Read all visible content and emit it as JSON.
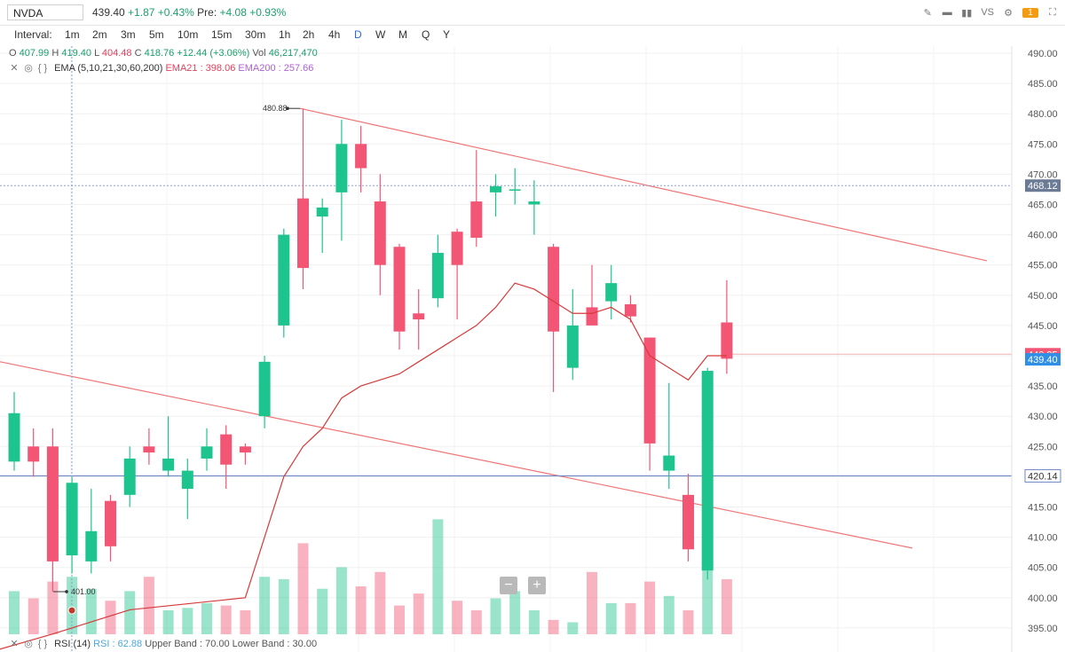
{
  "toolbar": {
    "symbol": "NVDA",
    "price": "439.40",
    "change": "+1.87",
    "change_pct": "+0.43%",
    "pre_label": "Pre:",
    "pre_change": "+4.08",
    "pre_change_pct": "+0.93%",
    "badge": "1",
    "vs_label": "VS"
  },
  "intervals": {
    "label": "Interval:",
    "items": [
      "1m",
      "2m",
      "3m",
      "5m",
      "10m",
      "15m",
      "30m",
      "1h",
      "2h",
      "4h",
      "D",
      "W",
      "M",
      "Q",
      "Y"
    ],
    "active": "D"
  },
  "ohlc": {
    "o_label": "O",
    "o": "407.99",
    "h_label": "H",
    "h": "419.40",
    "l_label": "L",
    "l": "404.48",
    "c_label": "C",
    "c": "418.76",
    "change": "+12.44 (+3.06%)",
    "vol_label": "Vol",
    "vol": "46,217,470"
  },
  "ema": {
    "label": "EMA (5,10,21,30,60,200)",
    "ema21": "EMA21 : 398.06",
    "ema200": "EMA200 : 257.66"
  },
  "rsi": {
    "label": "RSI (14)",
    "value": "RSI : 62.88",
    "upper": "Upper Band : 70.00",
    "lower": "Lower Band : 30.00"
  },
  "colors": {
    "up": "#1ec48e",
    "down": "#f25674",
    "ema": "#d63a3a",
    "trendline": "#f07575",
    "hline": "#6d88c4",
    "accent": "#2f6ad9"
  },
  "chart_data": {
    "type": "candlestick",
    "ylim": [
      392,
      492
    ],
    "y_ticks": [
      "490.00",
      "485.00",
      "480.00",
      "475.00",
      "470.00",
      "465.00",
      "460.00",
      "455.00",
      "450.00",
      "445.00",
      "440.00",
      "435.00",
      "430.00",
      "425.00",
      "420.00",
      "415.00",
      "410.00",
      "405.00",
      "400.00",
      "395.00"
    ],
    "candles": [
      {
        "o": 422.5,
        "h": 434,
        "l": 421,
        "c": 430.5
      },
      {
        "o": 425,
        "h": 428,
        "l": 420,
        "c": 422.5
      },
      {
        "o": 425,
        "h": 428,
        "l": 401,
        "c": 406
      },
      {
        "o": 407,
        "h": 420,
        "l": 404,
        "c": 419
      },
      {
        "o": 406,
        "h": 418,
        "l": 404,
        "c": 411
      },
      {
        "o": 416,
        "h": 417,
        "l": 406,
        "c": 408.5
      },
      {
        "o": 417,
        "h": 425,
        "l": 415,
        "c": 423
      },
      {
        "o": 425,
        "h": 428,
        "l": 422,
        "c": 424
      },
      {
        "o": 421,
        "h": 430,
        "l": 420,
        "c": 423
      },
      {
        "o": 418,
        "h": 423,
        "l": 413,
        "c": 421
      },
      {
        "o": 423,
        "h": 428,
        "l": 421,
        "c": 425
      },
      {
        "o": 427,
        "h": 428.5,
        "l": 418,
        "c": 422
      },
      {
        "o": 425,
        "h": 425.5,
        "l": 422,
        "c": 424
      },
      {
        "o": 430,
        "h": 440,
        "l": 428,
        "c": 439
      },
      {
        "o": 445,
        "h": 461,
        "l": 443,
        "c": 460
      },
      {
        "o": 466,
        "h": 480.88,
        "l": 451,
        "c": 454.5
      },
      {
        "o": 463,
        "h": 466,
        "l": 457,
        "c": 464.5
      },
      {
        "o": 467,
        "h": 479,
        "l": 459,
        "c": 475
      },
      {
        "o": 475,
        "h": 478,
        "l": 467,
        "c": 471
      },
      {
        "o": 465.5,
        "h": 470,
        "l": 450,
        "c": 455
      },
      {
        "o": 458,
        "h": 458.5,
        "l": 441,
        "c": 444
      },
      {
        "o": 447,
        "h": 451,
        "l": 441,
        "c": 446
      },
      {
        "o": 449.5,
        "h": 460,
        "l": 448,
        "c": 457
      },
      {
        "o": 460.5,
        "h": 461,
        "l": 446,
        "c": 455
      },
      {
        "o": 465.5,
        "h": 474,
        "l": 458,
        "c": 459.5
      },
      {
        "o": 467,
        "h": 470,
        "l": 463,
        "c": 468
      },
      {
        "o": 467.5,
        "h": 471,
        "l": 465,
        "c": 467.5
      },
      {
        "o": 465,
        "h": 469,
        "l": 460,
        "c": 465.5
      },
      {
        "o": 458,
        "h": 458.5,
        "l": 434,
        "c": 444
      },
      {
        "o": 438,
        "h": 451,
        "l": 436,
        "c": 445
      },
      {
        "o": 448,
        "h": 455,
        "l": 446,
        "c": 445
      },
      {
        "o": 449,
        "h": 455,
        "l": 446,
        "c": 452
      },
      {
        "o": 448.5,
        "h": 450,
        "l": 445.5,
        "c": 446.5
      },
      {
        "o": 443,
        "h": 443,
        "l": 421,
        "c": 425.5
      },
      {
        "o": 421,
        "h": 435.5,
        "l": 418,
        "c": 423.5
      },
      {
        "o": 417,
        "h": 420.5,
        "l": 406,
        "c": 408
      },
      {
        "o": 404.5,
        "h": 438,
        "l": 403,
        "c": 437.5
      },
      {
        "o": 445.5,
        "h": 452.5,
        "l": 437,
        "c": 439.5
      }
    ],
    "ema21": [
      null,
      null,
      null,
      null,
      null,
      null,
      null,
      null,
      null,
      null,
      null,
      null,
      400,
      410,
      420,
      425,
      428,
      433,
      435,
      436,
      437,
      439,
      441,
      443,
      445,
      448,
      452,
      451,
      449,
      447,
      447,
      448,
      446,
      440,
      438,
      436,
      440,
      440
    ],
    "volume": [
      9,
      7.5,
      11,
      12,
      9.5,
      7,
      9,
      12,
      5,
      5.5,
      6.5,
      6,
      5,
      12,
      11.5,
      19,
      9.5,
      14,
      10,
      13,
      6,
      8.5,
      24,
      7,
      5,
      7.5,
      9,
      5,
      3,
      2.5,
      13,
      6.5,
      6.5,
      11,
      8,
      5,
      13.5,
      11.5
    ],
    "price_labels": [
      "468.12",
      "420.14",
      "440.25",
      "439.40"
    ],
    "annotations": [
      "480.88",
      "401.00"
    ]
  }
}
